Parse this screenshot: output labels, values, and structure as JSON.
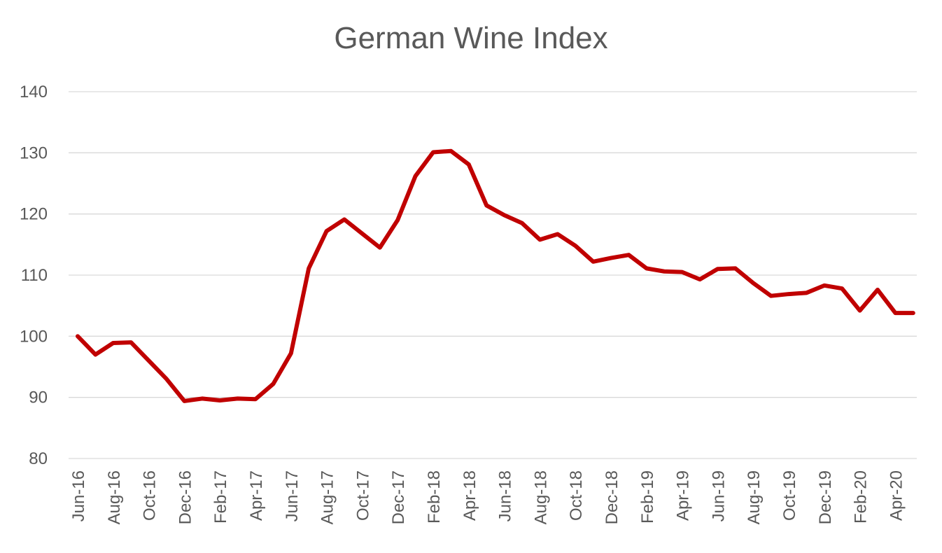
{
  "chart_data": {
    "type": "line",
    "title": "German Wine Index",
    "xlabel": "",
    "ylabel": "",
    "ylim": [
      80,
      140
    ],
    "yticks": [
      80,
      90,
      100,
      110,
      120,
      130,
      140
    ],
    "grid": true,
    "legend": "none",
    "x": [
      "Jun-16",
      "Jul-16",
      "Aug-16",
      "Sep-16",
      "Oct-16",
      "Nov-16",
      "Dec-16",
      "Jan-17",
      "Feb-17",
      "Mar-17",
      "Apr-17",
      "May-17",
      "Jun-17",
      "Jul-17",
      "Aug-17",
      "Sep-17",
      "Oct-17",
      "Nov-17",
      "Dec-17",
      "Jan-18",
      "Feb-18",
      "Mar-18",
      "Apr-18",
      "May-18",
      "Jun-18",
      "Jul-18",
      "Aug-18",
      "Sep-18",
      "Oct-18",
      "Nov-18",
      "Dec-18",
      "Jan-19",
      "Feb-19",
      "Mar-19",
      "Apr-19",
      "May-19",
      "Jun-19",
      "Jul-19",
      "Aug-19",
      "Sep-19",
      "Oct-19",
      "Nov-19",
      "Dec-19",
      "Jan-20",
      "Feb-20",
      "Mar-20",
      "Apr-20",
      "May-20"
    ],
    "tick_labels": [
      "Jun-16",
      "Aug-16",
      "Oct-16",
      "Dec-16",
      "Feb-17",
      "Apr-17",
      "Jun-17",
      "Aug-17",
      "Oct-17",
      "Dec-17",
      "Feb-18",
      "Apr-18",
      "Jun-18",
      "Aug-18",
      "Oct-18",
      "Dec-18",
      "Feb-19",
      "Apr-19",
      "Jun-19",
      "Aug-19",
      "Oct-19",
      "Dec-19",
      "Feb-20",
      "Apr-20"
    ],
    "series": [
      {
        "color": "#C00000",
        "values": [
          100.0,
          97.0,
          98.9,
          99.0,
          96.0,
          93.0,
          89.4,
          89.8,
          89.5,
          89.8,
          89.7,
          92.2,
          97.2,
          111.1,
          117.2,
          119.1,
          116.8,
          114.5,
          119.0,
          126.2,
          130.1,
          130.3,
          128.1,
          121.4,
          119.8,
          118.5,
          115.8,
          116.7,
          114.8,
          112.2,
          112.8,
          113.3,
          111.1,
          110.6,
          110.5,
          109.3,
          111.0,
          111.1,
          108.7,
          106.6,
          106.9,
          107.1,
          108.3,
          107.8,
          104.2,
          107.6,
          103.8,
          103.8
        ]
      }
    ]
  }
}
